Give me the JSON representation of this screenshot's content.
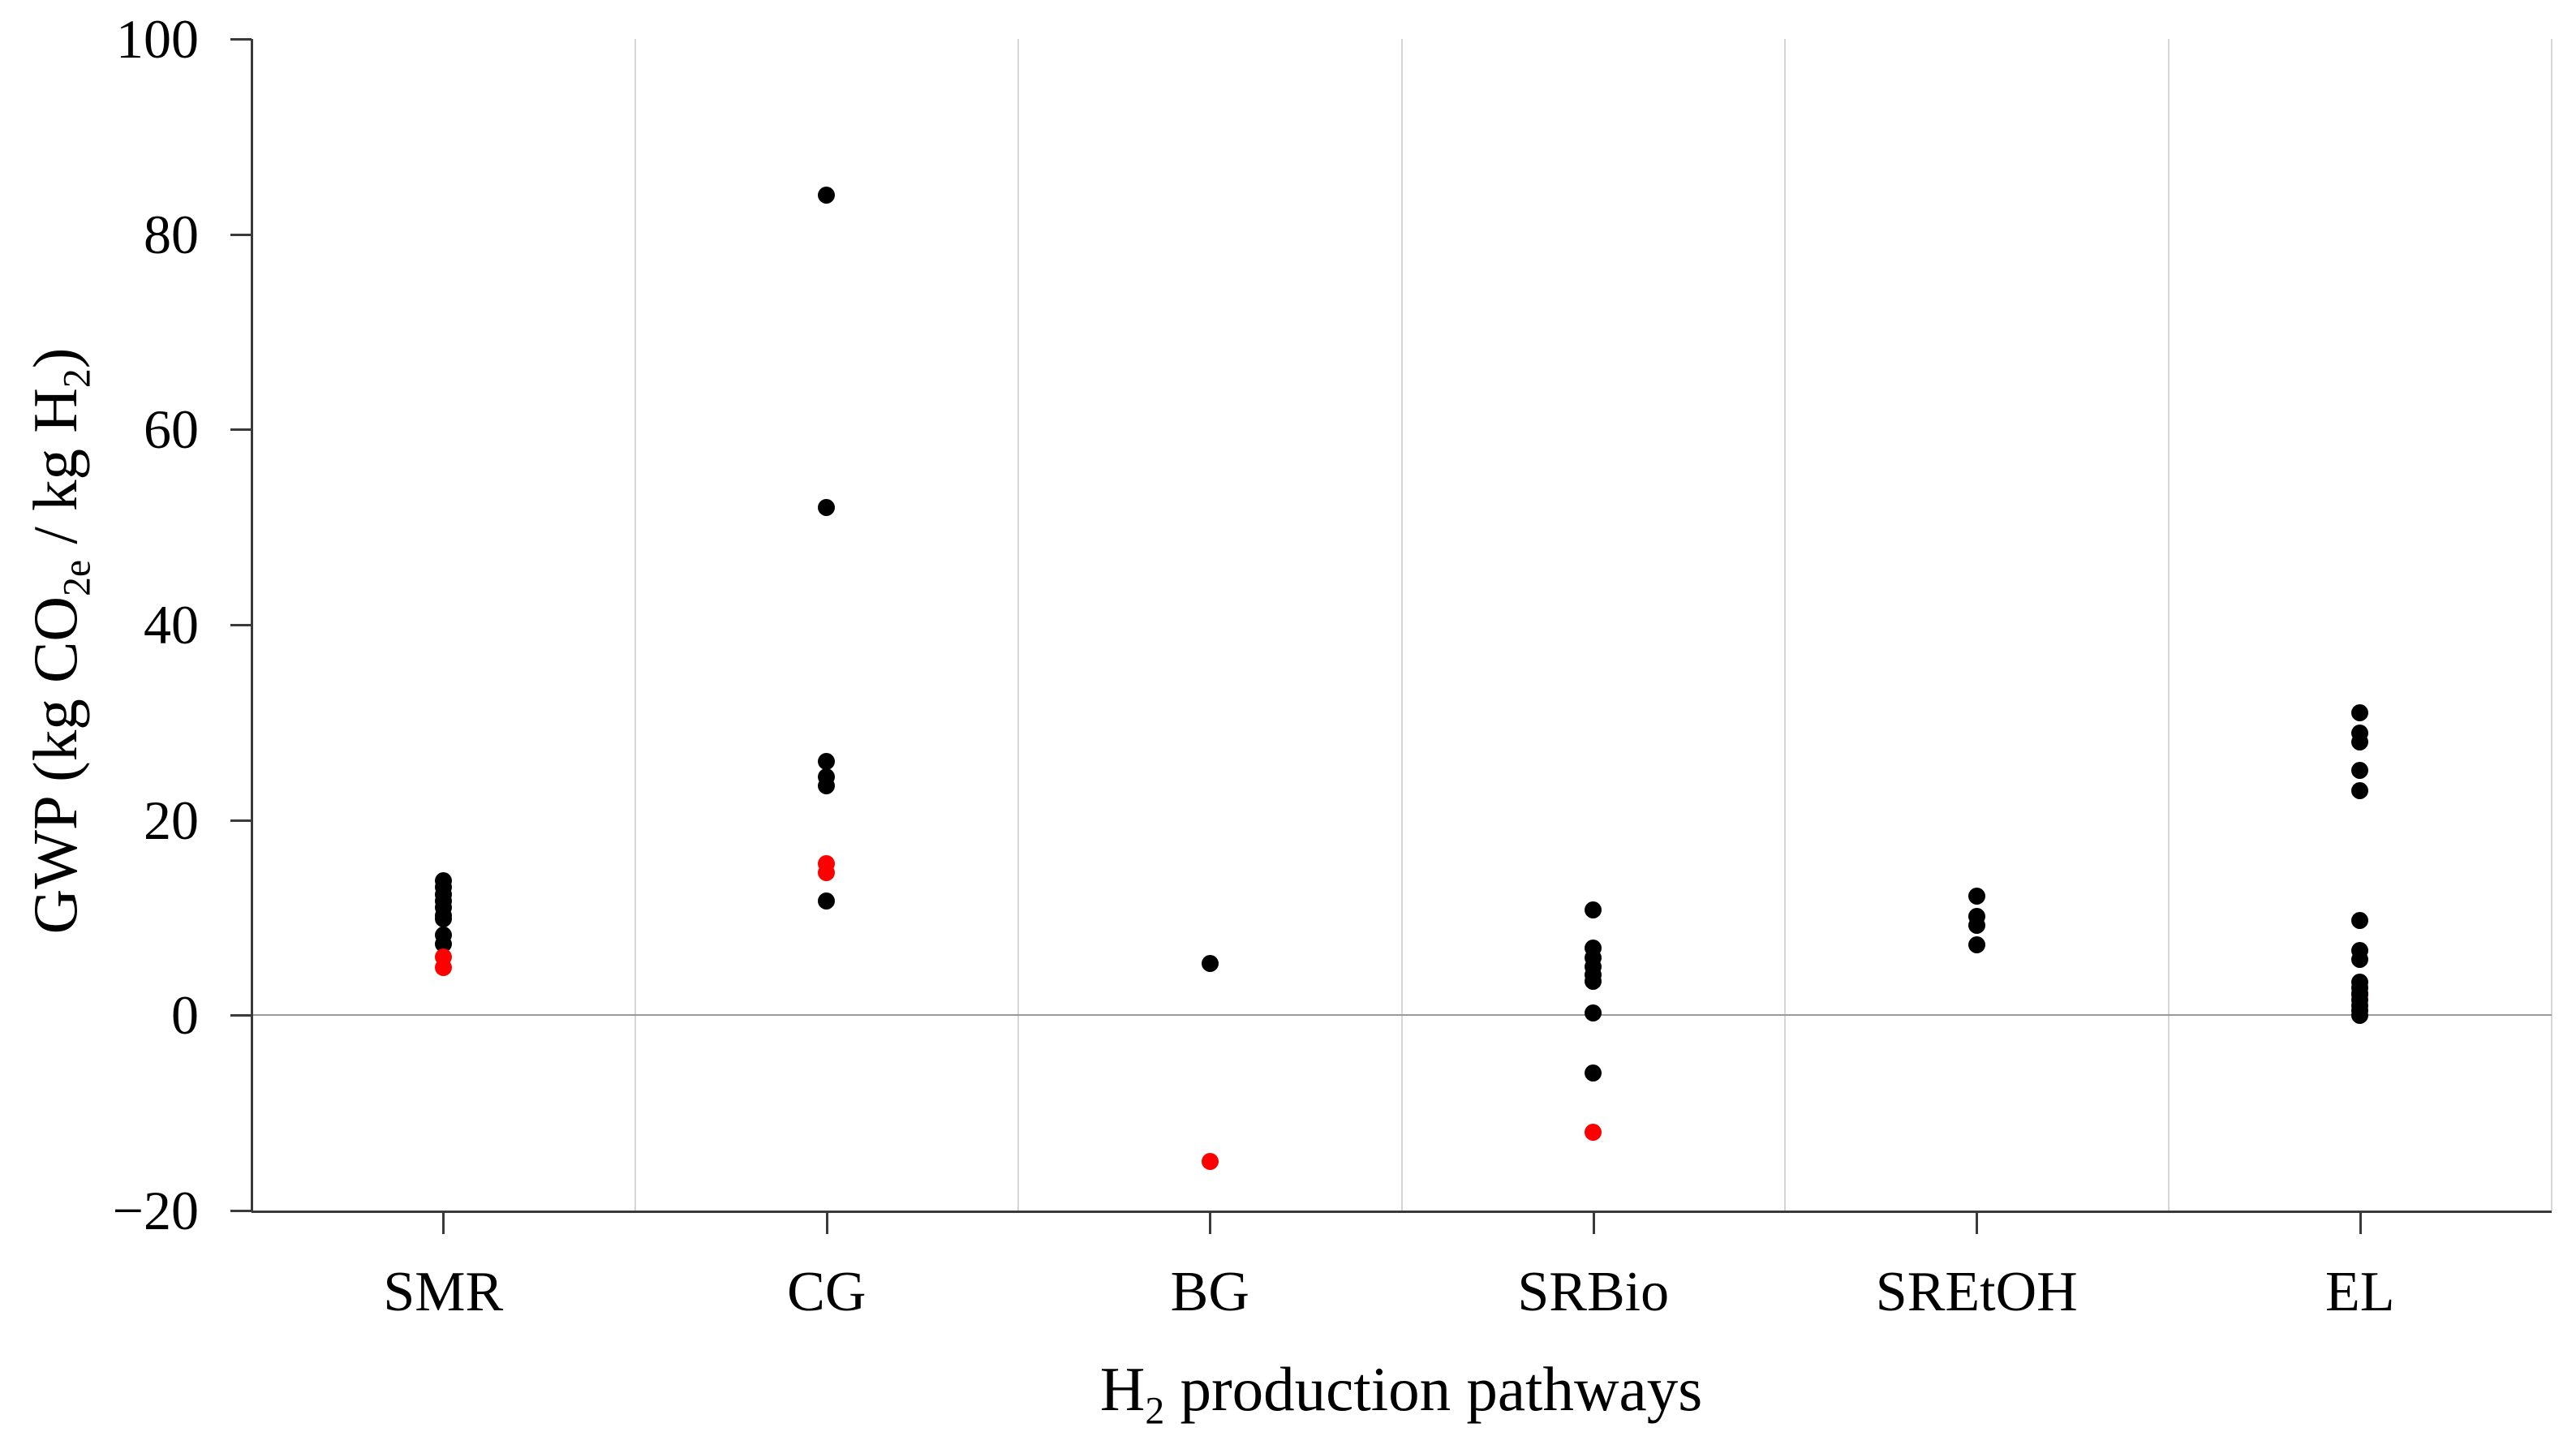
{
  "chart_data": {
    "type": "scatter",
    "title": "",
    "xlabel": "H2 production pathways",
    "ylabel": "GWP (kg CO2e / kg H2)",
    "xlabel_parts": {
      "pre": "H",
      "sub": "2",
      "post": " production pathways"
    },
    "ylabel_parts": {
      "pre": "GWP (kg CO",
      "sub1": "2e",
      "mid": " / kg H",
      "sub2": "2",
      "post": ")"
    },
    "ylim": [
      -20,
      100
    ],
    "yticks": [
      100,
      80,
      60,
      40,
      20,
      0,
      -20
    ],
    "categories": [
      "SMR",
      "CG",
      "BG",
      "SRBio",
      "SREtOH",
      "EL"
    ],
    "legend": "none",
    "grid": {
      "vertical_category_separators": true,
      "zero_line": true,
      "horizontal_grid": false
    },
    "colors": {
      "black_series": "#000000",
      "red_series": "#ff0000",
      "axis": "#3a3a3a",
      "gridline": "#d6d6d6",
      "zero_line": "#9a9a9a"
    },
    "series": [
      {
        "name": "literature-data-black",
        "color_key": "black_series",
        "values_by_category": [
          [
            13.8,
            13.1,
            12.4,
            11.7,
            11.0,
            10.2,
            9.9,
            8.2,
            7.3
          ],
          [
            84.0,
            52.0,
            26.0,
            24.4,
            23.5,
            11.7
          ],
          [
            5.3
          ],
          [
            10.8,
            6.9,
            5.9,
            5.0,
            4.1,
            3.5,
            0.2,
            -5.9
          ],
          [
            12.2,
            10.1,
            9.2,
            7.2
          ],
          [
            31.0,
            28.9,
            28.0,
            25.1,
            23.0,
            9.7,
            6.6,
            5.7,
            3.4,
            2.8,
            2.2,
            1.6,
            1.0,
            0.5,
            0.0
          ]
        ]
      },
      {
        "name": "highlighted-data-red",
        "color_key": "red_series",
        "values_by_category": [
          [
            6.0,
            4.9
          ],
          [
            15.5,
            14.6
          ],
          [
            -15.0
          ],
          [
            -12.0
          ],
          [],
          [
            2.1
          ]
        ],
        "behind_by_category": [
          [
            false,
            false
          ],
          [
            false,
            false
          ],
          [
            false
          ],
          [
            false
          ],
          [],
          [
            true
          ]
        ]
      }
    ]
  }
}
